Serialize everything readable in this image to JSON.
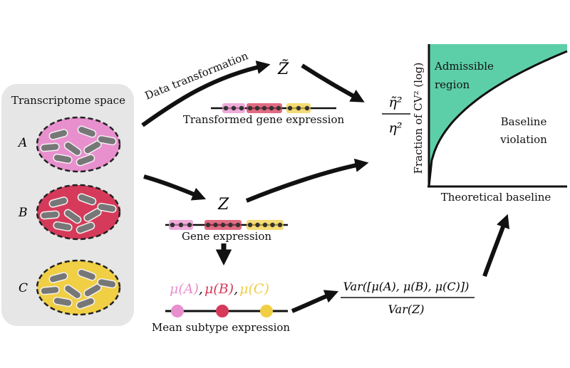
{
  "panel": {
    "title": "Transcriptome space",
    "subtypes": [
      {
        "name": "A",
        "color": "#e88fce"
      },
      {
        "name": "B",
        "color": "#d63a5a"
      },
      {
        "name": "C",
        "color": "#f0cf45"
      }
    ]
  },
  "flow": {
    "transform_label": "Data transformation",
    "z_tilde": "Z̃",
    "z": "Z",
    "transformed_expression_label": "Transformed gene expression",
    "gene_expression_label": "Gene expression",
    "mean_label": "Mean subtype expression",
    "mu_a": "μ(A)",
    "mu_b": "μ(B)",
    "mu_c": "μ(C)",
    "ratio_num": "η̃²",
    "ratio_den": "η²",
    "var_num": "Var([μ(A), μ(B), μ(C)])",
    "var_den": "Var(Z)"
  },
  "chart": {
    "ylabel": "Fraction of CV² (log)",
    "xlabel": "Theoretical baseline",
    "admissible_label_1": "Admissible",
    "admissible_label_2": "region",
    "violation_label_1": "Baseline",
    "violation_label_2": "violation",
    "fill_color": "#5dcfa8"
  }
}
